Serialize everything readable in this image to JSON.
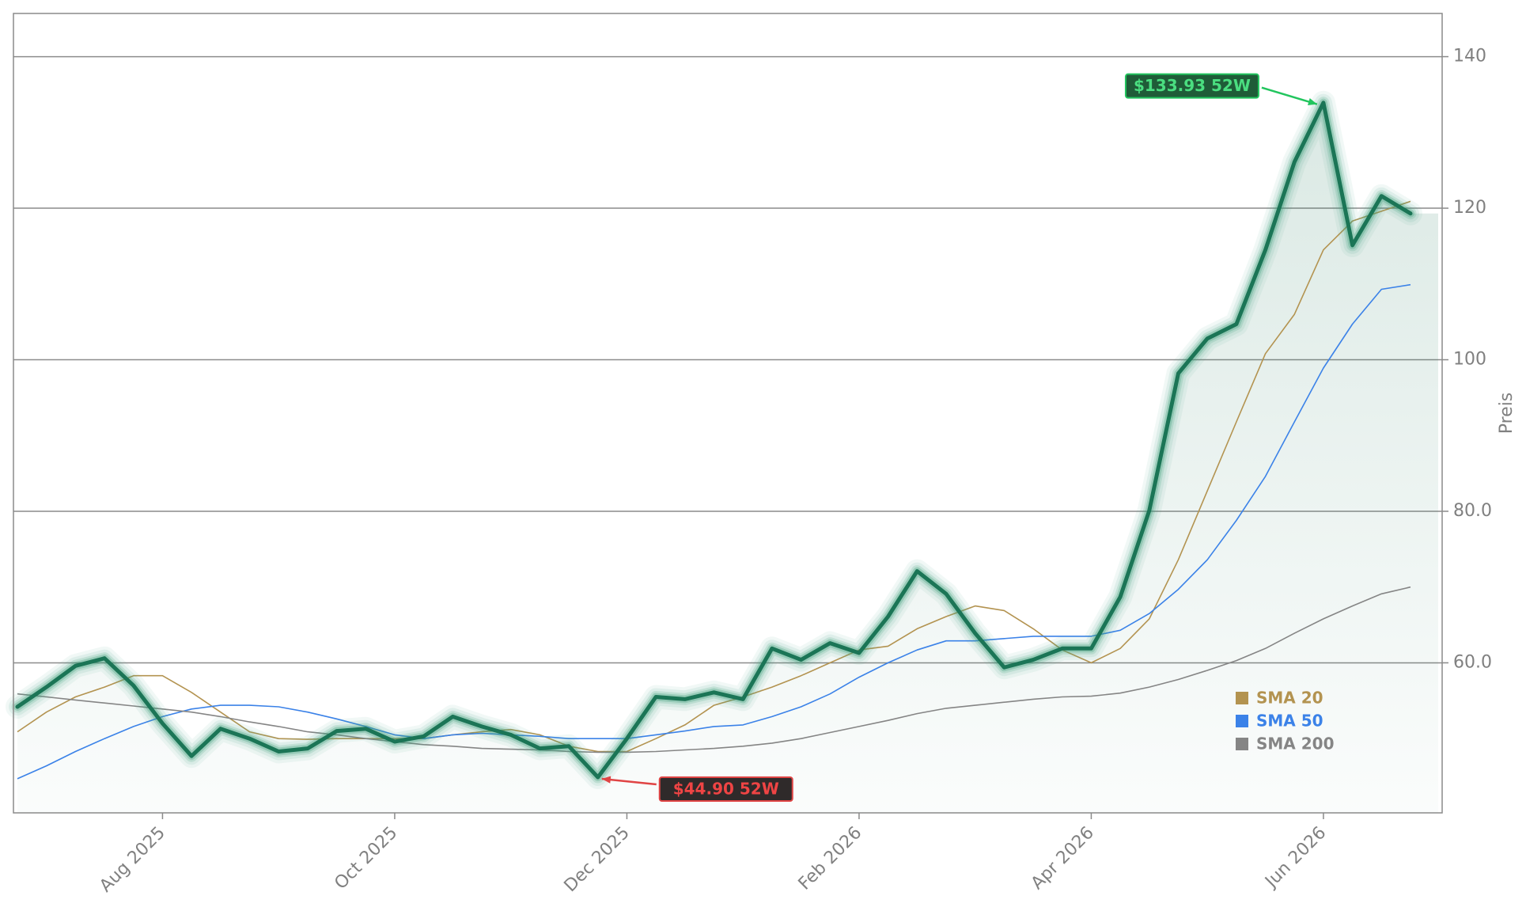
{
  "chart_data": {
    "type": "line",
    "y_axis_label": "Preis",
    "y_axis_side": "right",
    "categories": [
      null,
      null,
      null,
      null,
      null,
      "Aug 2025",
      null,
      null,
      null,
      null,
      null,
      null,
      null,
      "Oct 2025",
      null,
      null,
      null,
      null,
      null,
      null,
      null,
      "Dec 2025",
      null,
      null,
      null,
      null,
      null,
      null,
      null,
      "Feb 2026",
      null,
      null,
      null,
      null,
      null,
      null,
      null,
      "Apr 2026",
      null,
      null,
      null,
      null,
      null,
      null,
      null,
      "Jun 2026",
      null,
      null,
      null
    ],
    "ylim": [
      40.2,
      145.7
    ],
    "yticks": [
      {
        "value": 60,
        "label": "60.0"
      },
      {
        "value": 80,
        "label": "80.0"
      },
      100,
      120,
      140
    ],
    "grid": true,
    "legend": "lower right",
    "area_fill": true,
    "series": [
      {
        "color": "#1b7556",
        "glow": "#3f9e7c",
        "values": [
          54.2,
          56.8,
          59.6,
          60.6,
          57,
          52,
          47.7,
          51.3,
          50,
          48.3,
          48.7,
          51,
          51.3,
          49.6,
          50.3,
          52.9,
          51.6,
          50.5,
          48.7,
          49,
          44.9,
          50,
          55.5,
          55.2,
          56.1,
          55.2,
          61.9,
          60.4,
          62.6,
          61.3,
          66.1,
          72.1,
          69.1,
          63.9,
          59.4,
          60.4,
          61.9,
          61.9,
          68.7,
          80.1,
          98.2,
          102.8,
          104.7,
          114.5,
          126.1,
          133.93,
          115.1,
          121.6,
          119.3
        ]
      },
      {
        "name": "SMA 20",
        "color": "#b39350",
        "values": [
          50.9,
          53.5,
          55.5,
          56.8,
          58.3,
          58.3,
          56.1,
          53.5,
          50.9,
          50,
          49.9,
          50,
          50,
          50,
          50,
          50.5,
          50.9,
          51.2,
          50.5,
          49,
          48.3,
          48.3,
          50,
          51.8,
          54.4,
          55.5,
          56.8,
          58.3,
          60,
          61.7,
          62.2,
          64.5,
          66.1,
          67.5,
          66.9,
          64.5,
          61.7,
          60,
          61.9,
          65.8,
          73.6,
          82.7,
          91.8,
          100.8,
          106,
          114.5,
          118.3,
          119.6,
          120.9
        ]
      },
      {
        "name": "SMA 50",
        "color": "#3b82e8",
        "values": [
          44.7,
          46.4,
          48.3,
          50,
          51.6,
          52.9,
          53.9,
          54.4,
          54.4,
          54.2,
          53.5,
          52.6,
          51.6,
          50.5,
          50,
          50.5,
          50.7,
          50.5,
          50.3,
          50,
          50,
          50,
          50.5,
          51,
          51.6,
          51.8,
          52.9,
          54.2,
          55.9,
          58.1,
          60,
          61.7,
          62.9,
          62.9,
          63.2,
          63.5,
          63.5,
          63.5,
          64.3,
          66.5,
          69.7,
          73.6,
          78.8,
          84.6,
          91.8,
          98.9,
          104.7,
          109.3,
          109.9
        ]
      },
      {
        "name": "SMA 200",
        "color": "#858585",
        "values": [
          55.9,
          55.5,
          55.1,
          54.7,
          54.3,
          53.9,
          53.5,
          52.9,
          52.2,
          51.6,
          50.9,
          50.5,
          50,
          49.6,
          49.2,
          49,
          48.7,
          48.6,
          48.5,
          48.3,
          48.2,
          48.2,
          48.3,
          48.5,
          48.7,
          49,
          49.4,
          50,
          50.8,
          51.6,
          52.4,
          53.3,
          54,
          54.4,
          54.8,
          55.2,
          55.5,
          55.6,
          56,
          56.8,
          57.8,
          59,
          60.3,
          61.9,
          63.9,
          65.8,
          67.5,
          69.1,
          70
        ]
      }
    ],
    "annotations": [
      {
        "text": "$133.93 52W",
        "value": 133.93,
        "color": "#22c55e",
        "background": "#1f5c38",
        "text_color": "#4ade80"
      },
      {
        "text": "$44.90 52W",
        "value": 44.9,
        "color": "#e04444",
        "background": "#2f2a2a",
        "text_color": "#ef4444"
      }
    ]
  }
}
